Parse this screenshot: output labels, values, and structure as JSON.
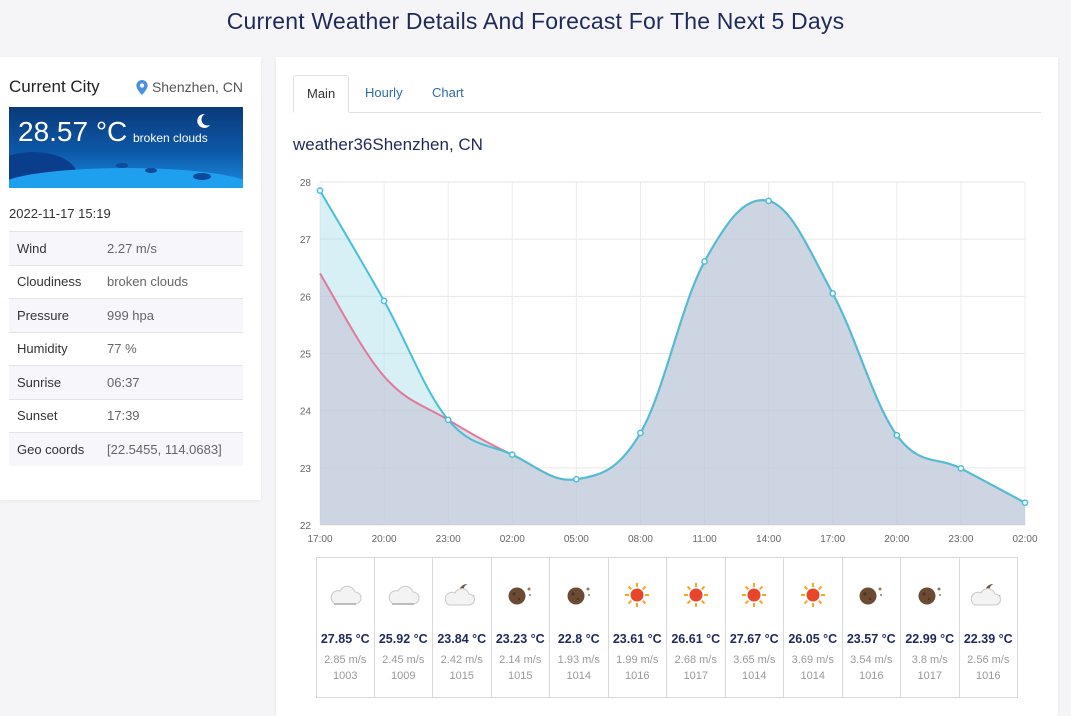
{
  "page": {
    "title": "Current Weather Details And Forecast For The Next 5 Days"
  },
  "current": {
    "label": "Current City",
    "location": "Shenzhen, CN",
    "temp": "28.57 °C",
    "description": "broken clouds",
    "datetime": "2022-11-17 15:19",
    "details": [
      {
        "key": "Wind",
        "value": "2.27 m/s"
      },
      {
        "key": "Cloudiness",
        "value": "broken clouds"
      },
      {
        "key": "Pressure",
        "value": "999 hpa"
      },
      {
        "key": "Humidity",
        "value": "77 %"
      },
      {
        "key": "Sunrise",
        "value": "06:37"
      },
      {
        "key": "Sunset",
        "value": "17:39"
      },
      {
        "key": "Geo coords",
        "value": "[22.5455, 114.0683]"
      }
    ]
  },
  "tabs": [
    {
      "label": "Main",
      "active": true
    },
    {
      "label": "Hourly",
      "active": false
    },
    {
      "label": "Chart",
      "active": false
    }
  ],
  "chart_title": "weather36Shenzhen, CN",
  "chart_data": {
    "type": "area",
    "x": [
      "17:00",
      "20:00",
      "23:00",
      "02:00",
      "05:00",
      "08:00",
      "11:00",
      "14:00",
      "17:00",
      "20:00",
      "23:00",
      "02:00"
    ],
    "ylim": [
      22,
      28
    ],
    "yticks": [
      22,
      23,
      24,
      25,
      26,
      27,
      28
    ],
    "grid": true,
    "series": [
      {
        "values": [
          27.85,
          25.92,
          23.84,
          23.23,
          22.8,
          23.61,
          26.61,
          27.67,
          26.05,
          23.57,
          22.99,
          22.39
        ],
        "color": "#4bbfd6"
      },
      {
        "values": [
          26.4,
          24.6,
          23.84,
          23.23,
          22.8,
          23.61,
          26.61,
          27.67,
          26.05,
          23.57,
          22.99,
          22.39
        ],
        "color": "#e07a97"
      }
    ]
  },
  "forecast": [
    {
      "icon": "cloud-icon",
      "temp": "27.85 °C",
      "wind": "2.85 m/s",
      "pressure": "1003"
    },
    {
      "icon": "cloud-icon",
      "temp": "25.92 °C",
      "wind": "2.45 m/s",
      "pressure": "1009"
    },
    {
      "icon": "moon-cloud-icon",
      "temp": "23.84 °C",
      "wind": "2.42 m/s",
      "pressure": "1015"
    },
    {
      "icon": "moon-icon",
      "temp": "23.23 °C",
      "wind": "2.14 m/s",
      "pressure": "1015"
    },
    {
      "icon": "moon-icon",
      "temp": "22.8 °C",
      "wind": "1.93 m/s",
      "pressure": "1014"
    },
    {
      "icon": "sun-icon",
      "temp": "23.61 °C",
      "wind": "1.99 m/s",
      "pressure": "1016"
    },
    {
      "icon": "sun-icon",
      "temp": "26.61 °C",
      "wind": "2.68 m/s",
      "pressure": "1017"
    },
    {
      "icon": "sun-icon",
      "temp": "27.67 °C",
      "wind": "3.65 m/s",
      "pressure": "1014"
    },
    {
      "icon": "sun-icon",
      "temp": "26.05 °C",
      "wind": "3.69 m/s",
      "pressure": "1014"
    },
    {
      "icon": "moon-icon",
      "temp": "23.57 °C",
      "wind": "3.54 m/s",
      "pressure": "1016"
    },
    {
      "icon": "moon-icon",
      "temp": "22.99 °C",
      "wind": "3.8 m/s",
      "pressure": "1017"
    },
    {
      "icon": "moon-cloud-icon",
      "temp": "22.39 °C",
      "wind": "2.56 m/s",
      "pressure": "1016"
    }
  ]
}
